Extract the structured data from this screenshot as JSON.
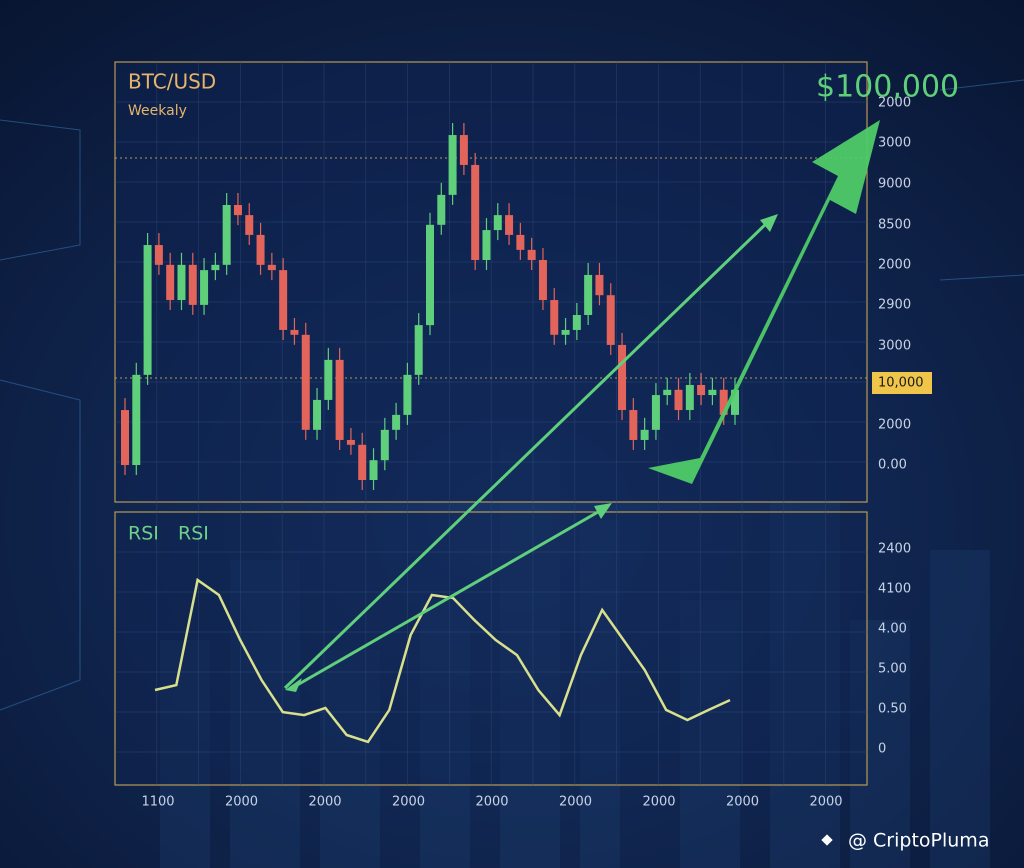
{
  "chart_data": [
    {
      "type": "candlestick",
      "title": "BTC/USD",
      "subtitle": "Weekaly",
      "annotation": "$100,000",
      "marker_label": "10,000",
      "right_labels": [
        "2000",
        "3000",
        "9000",
        "8500",
        "2000",
        "2900",
        "3000",
        "2000",
        "0.00"
      ],
      "values": [
        20.9,
        8.4,
        28.9,
        58.4,
        53.9,
        45.9,
        53.9,
        44.8,
        52.7,
        53.9,
        67.5,
        65.2,
        60.7,
        53.9,
        52.7,
        39.1,
        38.0,
        16.4,
        23.2,
        32.3,
        14.1,
        13.0,
        5.0,
        9.5,
        16.4,
        19.8,
        28.9,
        40.2,
        63.0,
        69.8,
        83.4,
        76.6,
        55.0,
        61.8,
        65.2,
        60.7,
        57.3,
        55.0,
        45.9,
        38.0,
        39.1,
        42.5,
        51.6,
        47.0,
        35.7,
        20.9,
        14.1,
        16.4,
        24.3,
        25.5,
        20.9,
        26.6,
        24.3,
        25.5,
        19.8,
        25.5
      ],
      "ylim": [
        0,
        100
      ],
      "up_color": "#5fcf7c",
      "down_color": "#e2645a"
    },
    {
      "type": "line",
      "title": [
        "RSI",
        "RSI"
      ],
      "right_labels": [
        "2400",
        "4100",
        "4.00",
        "5.00",
        "0.50",
        "0"
      ],
      "x_labels": [
        "1100",
        "2000",
        "2000",
        "2000",
        "2000",
        "2000",
        "2000",
        "2000",
        "2000"
      ],
      "values": [
        34.8,
        36.6,
        75.1,
        69.6,
        53.1,
        38.5,
        26.7,
        25.6,
        28.2,
        18.3,
        15.8,
        27.5,
        54.9,
        69.6,
        68.5,
        60.4,
        53.1,
        47.6,
        34.8,
        25.6,
        47.6,
        64.1,
        53.1,
        42.1,
        27.5,
        23.8,
        27.5,
        31.1
      ],
      "ylim": [
        0,
        100
      ],
      "color": "#d9e08c"
    }
  ],
  "watermark": "@ CriptoPluma"
}
